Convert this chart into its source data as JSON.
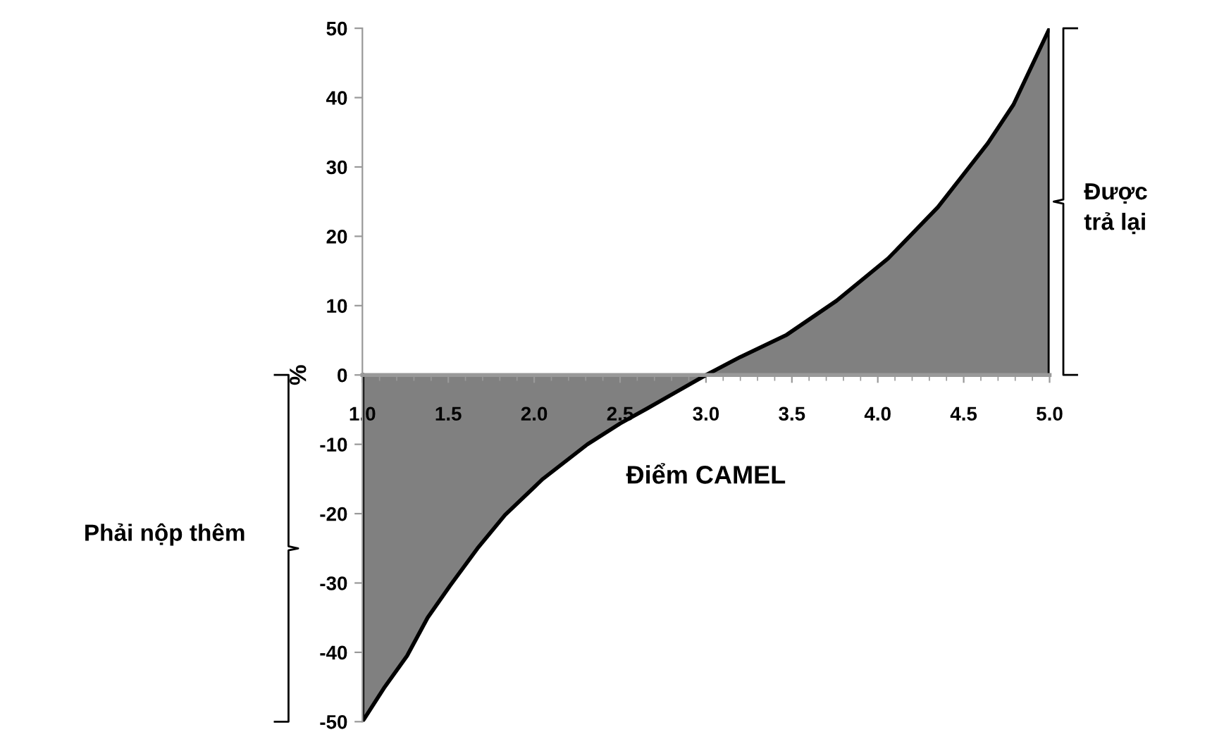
{
  "chart_data": {
    "type": "area",
    "xlabel": "Điểm CAMEL",
    "ylabel": "%",
    "x": [
      1.0,
      1.13,
      1.26,
      1.38,
      1.51,
      1.67,
      1.83,
      2.05,
      2.31,
      2.5,
      2.66,
      2.83,
      3.0,
      3.2,
      3.47,
      3.76,
      4.06,
      4.35,
      4.64,
      4.79,
      5.0
    ],
    "values": [
      -50,
      -45,
      -40.5,
      -35,
      -30.4,
      -25,
      -20.2,
      -15,
      -10,
      -7,
      -4.8,
      -2.4,
      0,
      2.6,
      5.8,
      10.7,
      16.8,
      24.2,
      33.4,
      39,
      50
    ],
    "color": "#808080",
    "xlim": [
      1.0,
      5.0
    ],
    "xticks": [
      {
        "value": 1.0,
        "label": "1.0"
      },
      {
        "value": 1.5,
        "label": "1.5"
      },
      {
        "value": 2.0,
        "label": "2.0"
      },
      {
        "value": 2.5,
        "label": "2.5"
      },
      {
        "value": 3.0,
        "label": "3.0"
      },
      {
        "value": 3.5,
        "label": "3.5"
      },
      {
        "value": 4.0,
        "label": "4.0"
      },
      {
        "value": 4.5,
        "label": "4.5"
      },
      {
        "value": 5.0,
        "label": "5.0"
      }
    ],
    "ylim": [
      -50,
      50
    ],
    "yticks": [
      -50,
      -40,
      -30,
      -20,
      -10,
      0,
      10,
      20,
      30,
      40,
      50
    ],
    "grid": false,
    "legend": false,
    "annotations": [
      "Phải nộp thêm",
      "Được\ntrả lại"
    ]
  }
}
